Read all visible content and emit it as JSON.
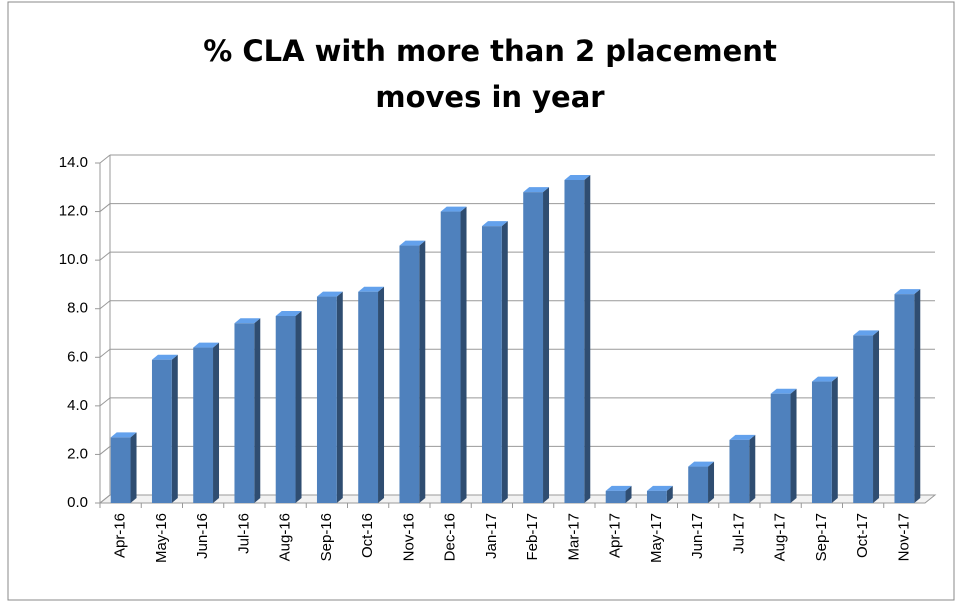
{
  "chart_data": {
    "type": "bar",
    "title": "% CLA with more than 2 placement moves in year",
    "categories": [
      "Apr-16",
      "May-16",
      "Jun-16",
      "Jul-16",
      "Aug-16",
      "Sep-16",
      "Oct-16",
      "Nov-16",
      "Dec-16",
      "Jan-17",
      "Feb-17",
      "Mar-17",
      "Apr-17",
      "May-17",
      "Jun-17",
      "Jul-17",
      "Aug-17",
      "Sep-17",
      "Oct-17",
      "Nov-17"
    ],
    "values": [
      2.7,
      5.9,
      6.4,
      7.4,
      7.7,
      8.5,
      8.7,
      10.6,
      12.0,
      11.4,
      12.8,
      13.3,
      0.5,
      0.5,
      1.5,
      2.6,
      4.5,
      5.0,
      6.9,
      8.6
    ],
    "color": "#4f81bd",
    "ylim": [
      0,
      14
    ],
    "yticks": [
      {
        "value": 0,
        "label": "0.0"
      },
      {
        "value": 2,
        "label": "2.0"
      },
      {
        "value": 4,
        "label": "4.0"
      },
      {
        "value": 6,
        "label": "6.0"
      },
      {
        "value": 8,
        "label": "8.0"
      },
      {
        "value": 10,
        "label": "10.0"
      },
      {
        "value": 12,
        "label": "12.0"
      },
      {
        "value": 14,
        "label": "14.0"
      }
    ],
    "grid": true
  }
}
